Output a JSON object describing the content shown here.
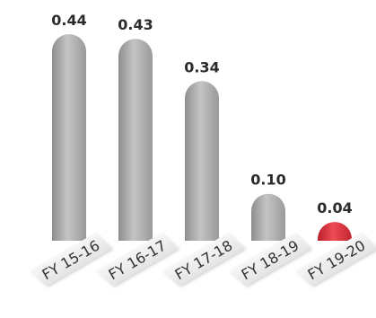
{
  "chart_data": {
    "type": "bar",
    "title": "",
    "xlabel": "",
    "ylabel": "",
    "categories": [
      "FY 15-16",
      "FY 16-17",
      "FY 17-18",
      "FY 18-19",
      "FY 19-20"
    ],
    "values": [
      0.44,
      0.43,
      0.34,
      0.1,
      0.04
    ],
    "value_labels": [
      "0.44",
      "0.43",
      "0.34",
      "0.10",
      "0.04"
    ],
    "ylim": [
      0,
      0.44
    ],
    "grid": false,
    "legend": "none",
    "colors": {
      "default_bar": "#a6a6a6",
      "highlight_bar": "#d9303a",
      "highlight_index": 4
    }
  }
}
